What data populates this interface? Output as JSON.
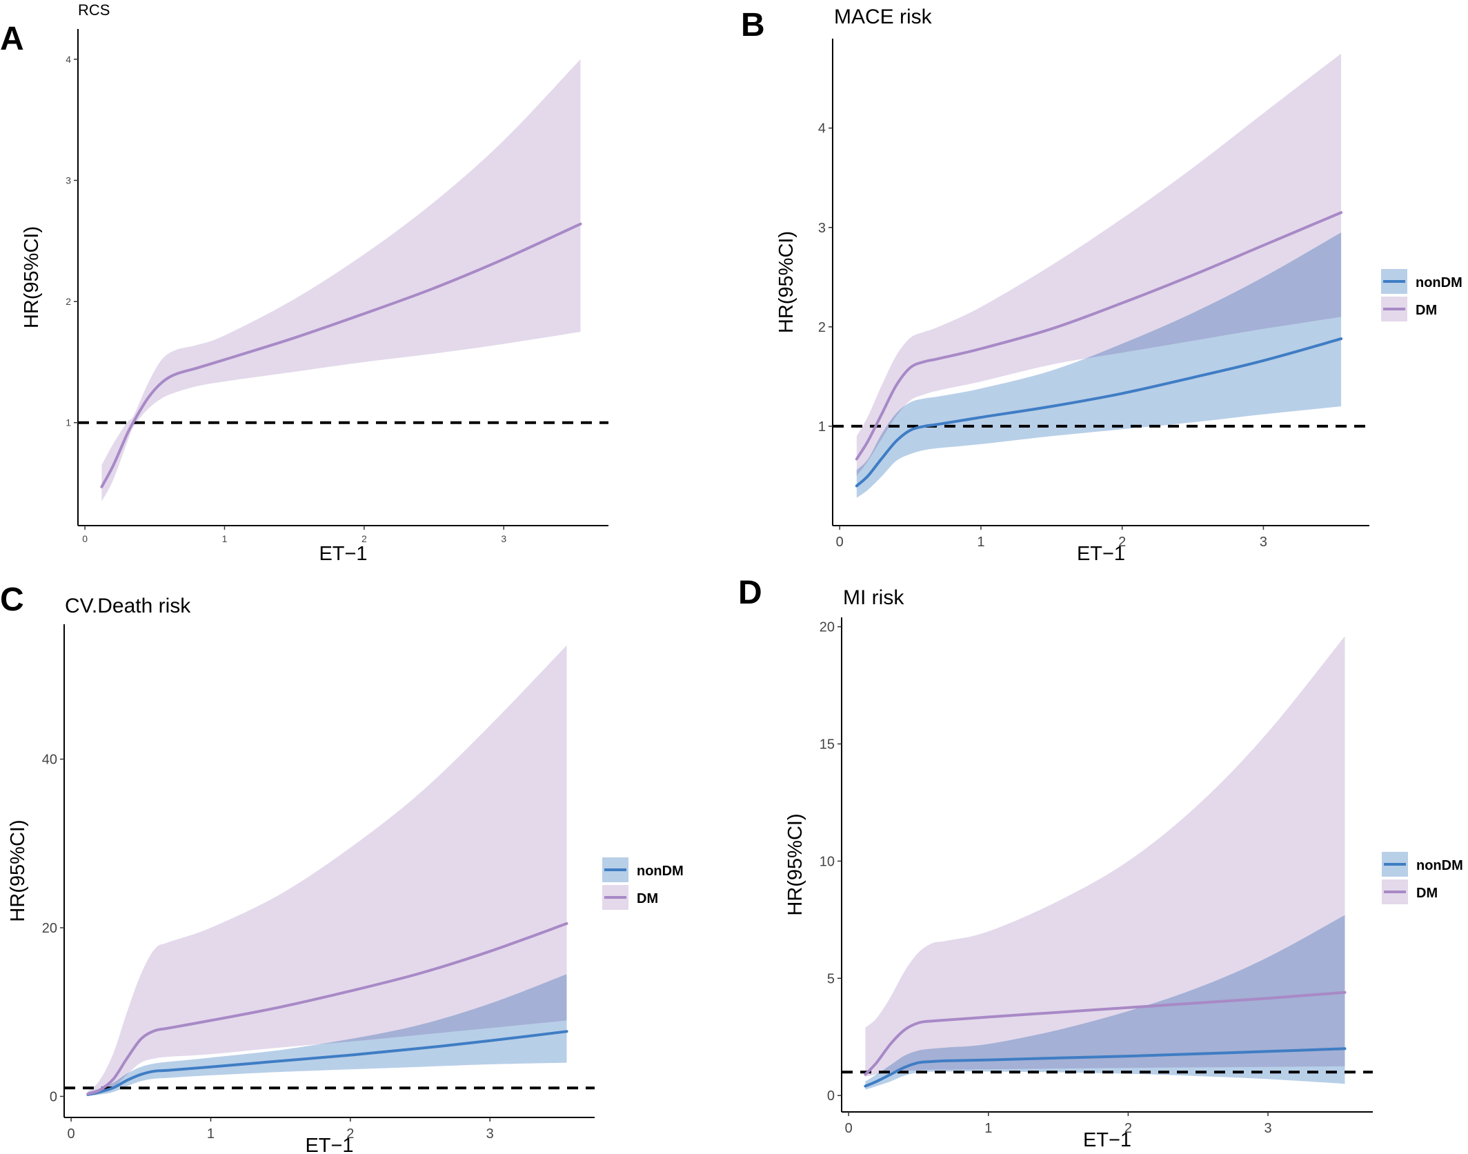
{
  "chart_data": [
    {
      "panel_letter": "A",
      "type": "line",
      "title": "RCS",
      "xlabel": "ET−1",
      "ylabel": "HR(95%CI)",
      "xlim": [
        -0.05,
        3.75
      ],
      "ylim": [
        0.15,
        4.25
      ],
      "xticks": [
        0,
        1,
        2,
        3
      ],
      "yticks": [
        1,
        2,
        3,
        4
      ],
      "reference_line": 1,
      "grid": false,
      "legend": null,
      "series": [
        {
          "color": "#A889C6",
          "fill": "#E3D9EB",
          "x": [
            0.12,
            0.2,
            0.3,
            0.35,
            0.45,
            0.55,
            0.65,
            0.8,
            1.0,
            1.5,
            2.0,
            2.5,
            3.0,
            3.55
          ],
          "y": [
            0.47,
            0.64,
            0.9,
            1.01,
            1.2,
            1.33,
            1.4,
            1.45,
            1.52,
            1.7,
            1.9,
            2.11,
            2.35,
            2.64
          ],
          "lower": [
            0.35,
            0.52,
            0.83,
            0.97,
            1.11,
            1.2,
            1.25,
            1.3,
            1.34,
            1.42,
            1.5,
            1.57,
            1.65,
            1.75
          ],
          "upper": [
            0.65,
            0.82,
            1.0,
            1.06,
            1.32,
            1.52,
            1.6,
            1.64,
            1.72,
            2.02,
            2.39,
            2.82,
            3.33,
            4.0
          ]
        }
      ]
    },
    {
      "panel_letter": "B",
      "type": "line",
      "title": "MACE risk",
      "xlabel": "ET−1",
      "ylabel": "HR(95%CI)",
      "xlim": [
        -0.05,
        3.75
      ],
      "ylim": [
        0.0,
        4.9
      ],
      "xticks": [
        0,
        1,
        2,
        3
      ],
      "yticks": [
        1,
        2,
        3,
        4
      ],
      "reference_line": 1,
      "grid": false,
      "legend": "right",
      "series": [
        {
          "name": "nonDM",
          "color": "#3F7DC4",
          "fill": "#B8CFE8",
          "x": [
            0.12,
            0.2,
            0.3,
            0.4,
            0.5,
            0.6,
            0.7,
            1.0,
            1.5,
            2.0,
            2.5,
            3.0,
            3.55
          ],
          "y": [
            0.4,
            0.5,
            0.68,
            0.85,
            0.96,
            1.0,
            1.02,
            1.09,
            1.2,
            1.33,
            1.49,
            1.66,
            1.88
          ],
          "lower": [
            0.28,
            0.36,
            0.5,
            0.65,
            0.72,
            0.76,
            0.78,
            0.82,
            0.9,
            0.97,
            1.04,
            1.12,
            1.2
          ],
          "upper": [
            0.56,
            0.67,
            0.93,
            1.13,
            1.24,
            1.28,
            1.3,
            1.38,
            1.56,
            1.83,
            2.14,
            2.5,
            2.95
          ]
        },
        {
          "name": "DM",
          "color": "#A889C6",
          "fill": "#E3D9EB",
          "x": [
            0.12,
            0.2,
            0.3,
            0.4,
            0.5,
            0.6,
            0.7,
            1.0,
            1.5,
            2.0,
            2.5,
            3.0,
            3.55
          ],
          "y": [
            0.67,
            0.85,
            1.13,
            1.41,
            1.59,
            1.65,
            1.68,
            1.78,
            1.98,
            2.24,
            2.52,
            2.82,
            3.15
          ],
          "lower": [
            0.5,
            0.65,
            0.88,
            1.1,
            1.26,
            1.32,
            1.36,
            1.45,
            1.62,
            1.74,
            1.86,
            1.98,
            2.1
          ],
          "upper": [
            0.9,
            1.1,
            1.42,
            1.71,
            1.89,
            1.95,
            2.0,
            2.2,
            2.62,
            3.09,
            3.6,
            4.15,
            4.75
          ]
        }
      ]
    },
    {
      "panel_letter": "C",
      "type": "line",
      "title": "CV.Death risk",
      "xlabel": "ET−1",
      "ylabel": "HR(95%CI)",
      "xlim": [
        -0.05,
        3.75
      ],
      "ylim": [
        -2.5,
        56
      ],
      "xticks": [
        0,
        1,
        2,
        3
      ],
      "yticks": [
        0,
        20,
        40
      ],
      "reference_line": 1,
      "grid": false,
      "legend": "right",
      "series": [
        {
          "name": "nonDM",
          "color": "#3F7DC4",
          "fill": "#B8CFE8",
          "x": [
            0.12,
            0.2,
            0.3,
            0.4,
            0.5,
            0.6,
            0.7,
            1.0,
            1.5,
            2.0,
            2.5,
            3.0,
            3.55
          ],
          "y": [
            0.2,
            0.5,
            1.0,
            1.9,
            2.6,
            3.0,
            3.1,
            3.5,
            4.2,
            4.9,
            5.7,
            6.6,
            7.7
          ],
          "lower": [
            0.05,
            0.2,
            0.5,
            1.2,
            1.8,
            2.1,
            2.2,
            2.5,
            2.9,
            3.2,
            3.5,
            3.8,
            4.0
          ],
          "upper": [
            0.5,
            0.9,
            1.6,
            2.7,
            3.5,
            3.9,
            4.1,
            4.6,
            5.5,
            6.8,
            8.5,
            11.0,
            14.5
          ]
        },
        {
          "name": "DM",
          "color": "#A889C6",
          "fill": "#E3D9EB",
          "x": [
            0.12,
            0.2,
            0.3,
            0.4,
            0.5,
            0.6,
            0.7,
            1.0,
            1.5,
            2.0,
            2.5,
            3.0,
            3.55
          ],
          "y": [
            0.3,
            0.7,
            2.0,
            4.5,
            6.8,
            7.8,
            8.1,
            9.0,
            10.6,
            12.5,
            14.6,
            17.2,
            20.5
          ],
          "lower": [
            0.1,
            0.3,
            1.0,
            2.6,
            4.0,
            4.5,
            4.7,
            5.0,
            5.8,
            6.5,
            7.3,
            8.1,
            9.0
          ],
          "upper": [
            0.6,
            1.8,
            5.0,
            10.0,
            14.5,
            17.5,
            18.3,
            20.0,
            24.0,
            29.5,
            36.0,
            44.0,
            53.5
          ]
        }
      ]
    },
    {
      "panel_letter": "D",
      "type": "line",
      "title": "MI risk",
      "xlabel": "ET−1",
      "ylabel": "HR(95%CI)",
      "xlim": [
        -0.05,
        3.75
      ],
      "ylim": [
        -0.7,
        20.4
      ],
      "xticks": [
        0,
        1,
        2,
        3
      ],
      "yticks": [
        0,
        5,
        10,
        15,
        20
      ],
      "reference_line": 1,
      "grid": false,
      "legend": "right",
      "series": [
        {
          "name": "nonDM",
          "color": "#3F7DC4",
          "fill": "#B8CFE8",
          "x": [
            0.12,
            0.2,
            0.3,
            0.4,
            0.5,
            0.6,
            0.7,
            1.0,
            1.5,
            2.0,
            2.5,
            3.0,
            3.55
          ],
          "y": [
            0.4,
            0.6,
            0.9,
            1.2,
            1.4,
            1.45,
            1.48,
            1.52,
            1.6,
            1.68,
            1.78,
            1.88,
            2.0
          ],
          "lower": [
            0.25,
            0.4,
            0.6,
            0.85,
            0.98,
            1.02,
            1.03,
            1.02,
            0.99,
            0.93,
            0.83,
            0.7,
            0.5
          ],
          "upper": [
            0.6,
            0.9,
            1.3,
            1.7,
            1.92,
            2.0,
            2.05,
            2.2,
            2.8,
            3.6,
            4.6,
            5.9,
            7.7
          ]
        },
        {
          "name": "DM",
          "color": "#A889C6",
          "fill": "#E3D9EB",
          "x": [
            0.12,
            0.2,
            0.3,
            0.4,
            0.5,
            0.6,
            0.7,
            1.0,
            1.5,
            2.0,
            2.5,
            3.0,
            3.55
          ],
          "y": [
            0.9,
            1.4,
            2.2,
            2.8,
            3.1,
            3.18,
            3.22,
            3.35,
            3.55,
            3.75,
            3.95,
            4.15,
            4.4
          ],
          "lower": [
            0.8,
            0.9,
            1.0,
            1.05,
            1.08,
            1.1,
            1.1,
            1.12,
            1.15,
            1.18,
            1.2,
            1.22,
            1.25
          ],
          "upper": [
            2.9,
            3.3,
            4.2,
            5.3,
            6.1,
            6.5,
            6.6,
            7.0,
            8.3,
            10.0,
            12.4,
            15.5,
            19.6
          ]
        }
      ]
    }
  ]
}
